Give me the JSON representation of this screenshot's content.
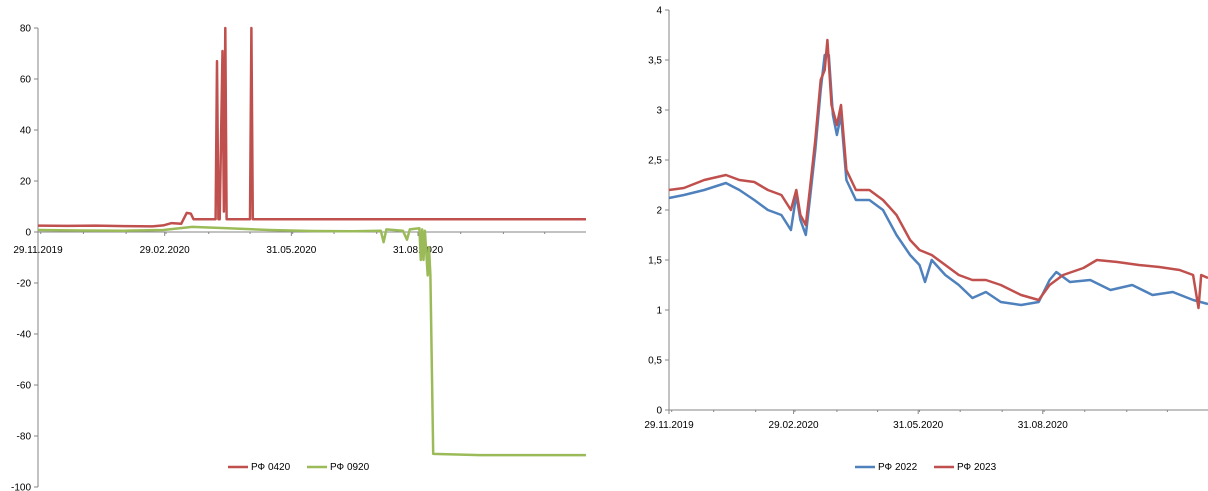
{
  "chart_data": [
    {
      "type": "line",
      "title": "",
      "xlabel": "",
      "ylabel": "",
      "ylim": [
        -100,
        80
      ],
      "yticks": [
        80,
        60,
        40,
        20,
        0,
        -20,
        -40,
        -60,
        -80,
        -100
      ],
      "x_tick_labels": [
        "29.11.2019",
        "29.02.2020",
        "31.05.2020",
        "31.08.2020"
      ],
      "x_range": [
        "2019-11-29",
        "2020-12-31"
      ],
      "legend_position": "bottom",
      "series": [
        {
          "name": "РФ 0420",
          "color": "#c0504d",
          "points": [
            [
              "2019-11-29",
              2.5
            ],
            [
              "2019-12-20",
              2.4
            ],
            [
              "2020-01-10",
              2.5
            ],
            [
              "2020-01-31",
              2.3
            ],
            [
              "2020-02-20",
              2.2
            ],
            [
              "2020-02-28",
              2.6
            ],
            [
              "2020-03-05",
              3.5
            ],
            [
              "2020-03-12",
              3.2
            ],
            [
              "2020-03-16",
              7.5
            ],
            [
              "2020-03-19",
              7.2
            ],
            [
              "2020-03-21",
              5.0
            ],
            [
              "2020-04-06",
              5.0
            ],
            [
              "2020-04-07",
              67
            ],
            [
              "2020-04-08",
              5.0
            ],
            [
              "2020-04-09",
              5.0
            ],
            [
              "2020-04-11",
              71
            ],
            [
              "2020-04-12",
              8
            ],
            [
              "2020-04-13",
              80
            ],
            [
              "2020-04-14",
              5.0
            ],
            [
              "2020-05-01",
              5.0
            ],
            [
              "2020-05-02",
              80
            ],
            [
              "2020-05-03",
              5.0
            ],
            [
              "2020-06-15",
              5.0
            ],
            [
              "2020-08-01",
              5.0
            ],
            [
              "2020-10-01",
              5.0
            ],
            [
              "2020-12-31",
              5.0
            ]
          ]
        },
        {
          "name": "РФ 0920",
          "color": "#9bbb59",
          "points": [
            [
              "2019-11-29",
              0.8
            ],
            [
              "2019-12-31",
              0.6
            ],
            [
              "2020-01-31",
              0.5
            ],
            [
              "2020-02-28",
              0.8
            ],
            [
              "2020-03-20",
              2.0
            ],
            [
              "2020-04-15",
              1.5
            ],
            [
              "2020-05-15",
              0.8
            ],
            [
              "2020-06-15",
              0.4
            ],
            [
              "2020-07-15",
              0.3
            ],
            [
              "2020-08-04",
              0.5
            ],
            [
              "2020-08-06",
              -4
            ],
            [
              "2020-08-08",
              1.0
            ],
            [
              "2020-08-20",
              0.5
            ],
            [
              "2020-08-23",
              -3
            ],
            [
              "2020-08-25",
              1.0
            ],
            [
              "2020-09-01",
              1.5
            ],
            [
              "2020-09-02",
              -11
            ],
            [
              "2020-09-03",
              1.0
            ],
            [
              "2020-09-04",
              -11
            ],
            [
              "2020-09-05",
              0.5
            ],
            [
              "2020-09-07",
              -17
            ],
            [
              "2020-09-08",
              -6
            ],
            [
              "2020-09-09",
              -17
            ],
            [
              "2020-09-11",
              -87
            ],
            [
              "2020-10-15",
              -87.5
            ],
            [
              "2020-12-31",
              -87.5
            ]
          ]
        }
      ]
    },
    {
      "type": "line",
      "title": "",
      "xlabel": "",
      "ylabel": "",
      "ylim": [
        0,
        4
      ],
      "yticks": [
        "4",
        "3,5",
        "3",
        "2,5",
        "2",
        "1,5",
        "1",
        "0,5",
        "0"
      ],
      "x_tick_labels": [
        "29.11.2019",
        "29.02.2020",
        "31.05.2020",
        "31.08.2020"
      ],
      "x_range": [
        "2019-11-29",
        "2020-12-31"
      ],
      "legend_position": "bottom",
      "series": [
        {
          "name": "РФ 2022",
          "color": "#4f81bd",
          "points": [
            [
              "2019-11-29",
              2.12
            ],
            [
              "2019-12-10",
              2.15
            ],
            [
              "2019-12-25",
              2.2
            ],
            [
              "2020-01-10",
              2.27
            ],
            [
              "2020-01-20",
              2.2
            ],
            [
              "2020-01-31",
              2.1
            ],
            [
              "2020-02-10",
              2.0
            ],
            [
              "2020-02-20",
              1.95
            ],
            [
              "2020-02-27",
              1.8
            ],
            [
              "2020-03-02",
              2.15
            ],
            [
              "2020-03-05",
              1.9
            ],
            [
              "2020-03-09",
              1.75
            ],
            [
              "2020-03-12",
              2.1
            ],
            [
              "2020-03-16",
              2.6
            ],
            [
              "2020-03-20",
              3.2
            ],
            [
              "2020-03-23",
              3.55
            ],
            [
              "2020-03-26",
              3.55
            ],
            [
              "2020-03-29",
              2.95
            ],
            [
              "2020-04-01",
              2.75
            ],
            [
              "2020-04-04",
              2.95
            ],
            [
              "2020-04-08",
              2.3
            ],
            [
              "2020-04-15",
              2.1
            ],
            [
              "2020-04-25",
              2.1
            ],
            [
              "2020-05-05",
              2.0
            ],
            [
              "2020-05-15",
              1.75
            ],
            [
              "2020-05-25",
              1.55
            ],
            [
              "2020-06-01",
              1.45
            ],
            [
              "2020-06-05",
              1.28
            ],
            [
              "2020-06-10",
              1.5
            ],
            [
              "2020-06-20",
              1.35
            ],
            [
              "2020-06-30",
              1.25
            ],
            [
              "2020-07-10",
              1.12
            ],
            [
              "2020-07-20",
              1.18
            ],
            [
              "2020-07-31",
              1.08
            ],
            [
              "2020-08-15",
              1.05
            ],
            [
              "2020-08-28",
              1.08
            ],
            [
              "2020-09-05",
              1.3
            ],
            [
              "2020-09-10",
              1.38
            ],
            [
              "2020-09-20",
              1.28
            ],
            [
              "2020-10-05",
              1.3
            ],
            [
              "2020-10-20",
              1.2
            ],
            [
              "2020-11-05",
              1.25
            ],
            [
              "2020-11-20",
              1.15
            ],
            [
              "2020-12-05",
              1.18
            ],
            [
              "2020-12-20",
              1.1
            ],
            [
              "2020-12-31",
              1.06
            ]
          ]
        },
        {
          "name": "РФ 2023",
          "color": "#c0504d",
          "points": [
            [
              "2019-11-29",
              2.2
            ],
            [
              "2019-12-10",
              2.22
            ],
            [
              "2019-12-25",
              2.3
            ],
            [
              "2020-01-10",
              2.35
            ],
            [
              "2020-01-20",
              2.3
            ],
            [
              "2020-01-31",
              2.28
            ],
            [
              "2020-02-10",
              2.2
            ],
            [
              "2020-02-20",
              2.15
            ],
            [
              "2020-02-27",
              2.0
            ],
            [
              "2020-03-02",
              2.2
            ],
            [
              "2020-03-05",
              1.95
            ],
            [
              "2020-03-09",
              1.85
            ],
            [
              "2020-03-12",
              2.2
            ],
            [
              "2020-03-16",
              2.7
            ],
            [
              "2020-03-20",
              3.3
            ],
            [
              "2020-03-23",
              3.4
            ],
            [
              "2020-03-25",
              3.7
            ],
            [
              "2020-03-28",
              3.05
            ],
            [
              "2020-04-01",
              2.85
            ],
            [
              "2020-04-04",
              3.05
            ],
            [
              "2020-04-08",
              2.4
            ],
            [
              "2020-04-15",
              2.2
            ],
            [
              "2020-04-25",
              2.2
            ],
            [
              "2020-05-05",
              2.1
            ],
            [
              "2020-05-15",
              1.95
            ],
            [
              "2020-05-25",
              1.7
            ],
            [
              "2020-06-01",
              1.6
            ],
            [
              "2020-06-10",
              1.55
            ],
            [
              "2020-06-20",
              1.45
            ],
            [
              "2020-06-30",
              1.35
            ],
            [
              "2020-07-10",
              1.3
            ],
            [
              "2020-07-20",
              1.3
            ],
            [
              "2020-07-31",
              1.25
            ],
            [
              "2020-08-15",
              1.15
            ],
            [
              "2020-08-28",
              1.1
            ],
            [
              "2020-09-05",
              1.25
            ],
            [
              "2020-09-15",
              1.35
            ],
            [
              "2020-09-30",
              1.42
            ],
            [
              "2020-10-10",
              1.5
            ],
            [
              "2020-10-25",
              1.48
            ],
            [
              "2020-11-10",
              1.45
            ],
            [
              "2020-11-25",
              1.43
            ],
            [
              "2020-12-10",
              1.4
            ],
            [
              "2020-12-20",
              1.35
            ],
            [
              "2020-12-24",
              1.02
            ],
            [
              "2020-12-26",
              1.35
            ],
            [
              "2020-12-31",
              1.32
            ]
          ]
        }
      ]
    }
  ]
}
